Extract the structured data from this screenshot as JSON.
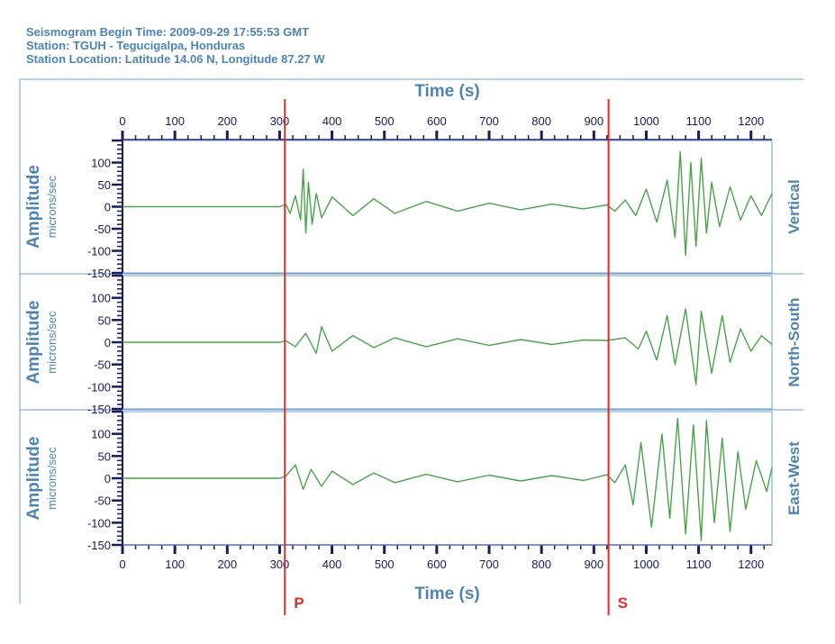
{
  "header": {
    "line1": "Seismogram Begin Time: 2009-09-29 17:55:53 GMT",
    "line2": "Station: TGUH - Tegucigalpa, Honduras",
    "line3": "Station Location: Latitude 14.06 N, Longitude 87.27 W"
  },
  "colors": {
    "frame": "#6f9ec7",
    "label": "#4e84b2",
    "axis": "#1a1a5c",
    "trace": "#4aa34a",
    "marker": "#e02b2b"
  },
  "chart_data": {
    "type": "line",
    "xlabel": "Time (s)",
    "xlim": [
      0,
      1240
    ],
    "x_ticks": [
      0,
      100,
      200,
      300,
      400,
      500,
      600,
      700,
      800,
      900,
      1000,
      1100,
      1200
    ],
    "x_tick_labels": [
      "0",
      "100",
      "200",
      "300",
      "400",
      "500",
      "600",
      "700",
      "800",
      "900",
      "1000",
      "1100",
      "1200"
    ],
    "ylabel": "Amplitude",
    "yunit": "microns/sec",
    "ylim": [
      -150,
      150
    ],
    "y_ticks": [
      100,
      50,
      0,
      -50,
      -100,
      -150
    ],
    "y_tick_labels": [
      "100",
      "50",
      "0",
      "-50",
      "-100",
      "-150"
    ],
    "markers": [
      {
        "label": "P",
        "x": 310
      },
      {
        "label": "S",
        "x": 928
      }
    ],
    "series": [
      {
        "name": "Vertical",
        "x": [
          0,
          300,
          312,
          320,
          330,
          340,
          345,
          350,
          355,
          362,
          370,
          380,
          400,
          440,
          480,
          520,
          580,
          640,
          700,
          760,
          820,
          880,
          925,
          940,
          960,
          980,
          1000,
          1020,
          1040,
          1055,
          1065,
          1075,
          1085,
          1095,
          1105,
          1115,
          1125,
          1140,
          1160,
          1180,
          1200,
          1220,
          1240
        ],
        "values": [
          0,
          0,
          5,
          -15,
          25,
          -30,
          85,
          -60,
          55,
          -40,
          30,
          -25,
          22,
          -20,
          18,
          -15,
          12,
          -10,
          8,
          -7,
          6,
          -5,
          4,
          -10,
          15,
          -20,
          40,
          -35,
          60,
          -70,
          125,
          -110,
          100,
          -90,
          110,
          -60,
          55,
          -45,
          45,
          -30,
          25,
          -20,
          30
        ]
      },
      {
        "name": "North-South",
        "x": [
          0,
          300,
          312,
          330,
          350,
          370,
          380,
          400,
          440,
          480,
          520,
          580,
          640,
          700,
          760,
          820,
          880,
          925,
          960,
          985,
          1000,
          1020,
          1040,
          1055,
          1075,
          1095,
          1105,
          1125,
          1145,
          1160,
          1180,
          1200,
          1220,
          1240
        ],
        "values": [
          0,
          0,
          3,
          -10,
          20,
          -25,
          35,
          -20,
          15,
          -12,
          10,
          -10,
          8,
          -7,
          6,
          -5,
          5,
          4,
          10,
          -15,
          25,
          -40,
          60,
          -50,
          75,
          -95,
          70,
          -70,
          60,
          -45,
          30,
          -20,
          15,
          -5
        ]
      },
      {
        "name": "East-West",
        "x": [
          0,
          300,
          312,
          330,
          345,
          360,
          380,
          400,
          440,
          480,
          520,
          580,
          640,
          700,
          760,
          820,
          880,
          925,
          940,
          960,
          975,
          990,
          1010,
          1030,
          1045,
          1060,
          1075,
          1090,
          1105,
          1115,
          1130,
          1145,
          1160,
          1175,
          1190,
          1210,
          1230,
          1240
        ],
        "values": [
          0,
          0,
          5,
          30,
          -25,
          20,
          -18,
          16,
          -14,
          12,
          -10,
          9,
          -8,
          7,
          -6,
          6,
          -5,
          8,
          -10,
          30,
          -60,
          80,
          -110,
          100,
          -90,
          135,
          -125,
          120,
          -140,
          130,
          -100,
          90,
          -120,
          60,
          -70,
          40,
          -30,
          25
        ]
      }
    ]
  }
}
